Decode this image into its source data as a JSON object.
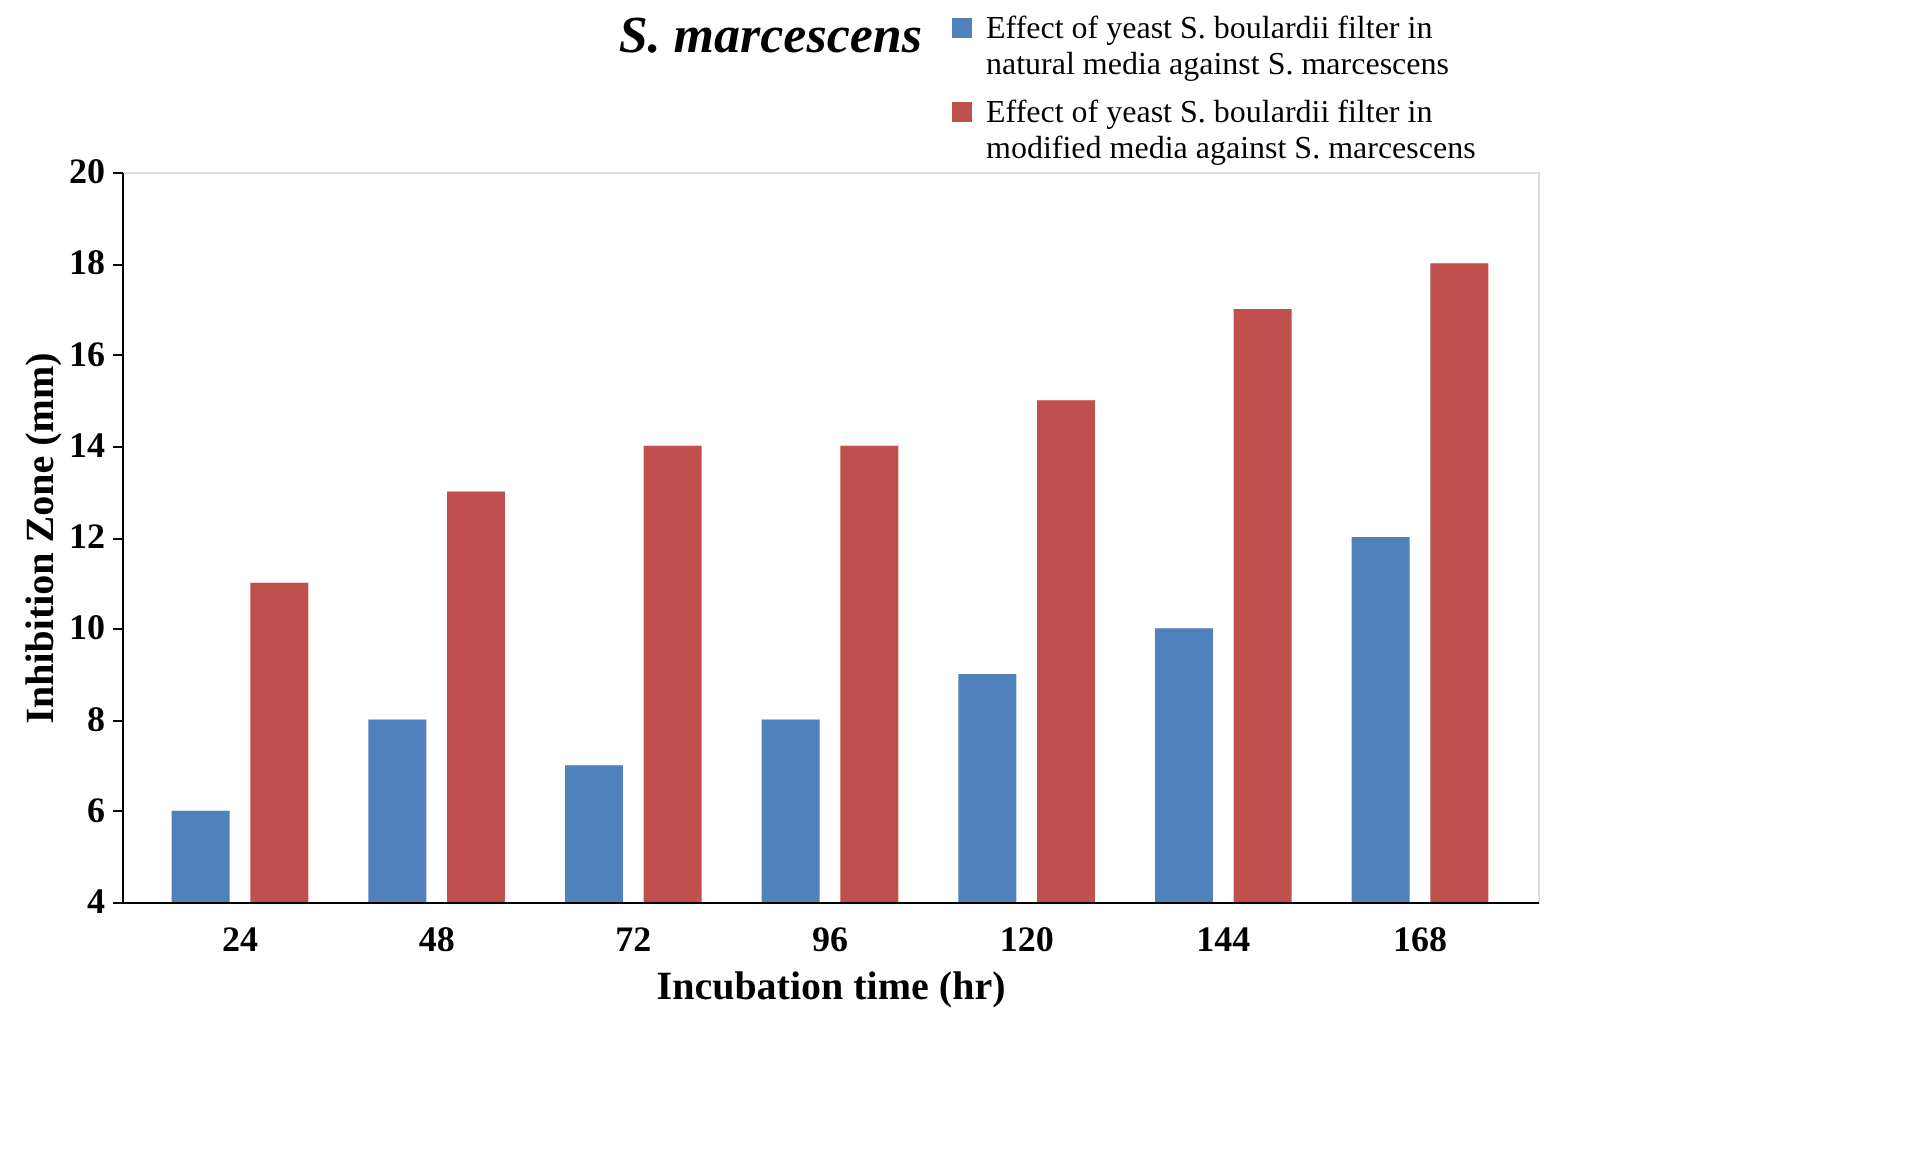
{
  "chart_data": {
    "type": "bar",
    "title": "S. marcescens",
    "xlabel": "Incubation time (hr)",
    "ylabel": "Inhibition Zone (mm)",
    "categories": [
      "24",
      "48",
      "72",
      "96",
      "120",
      "144",
      "168"
    ],
    "series": [
      {
        "name": "Effect of yeast S. boulardii filter in natural media against S. marcescens",
        "color": "#4f81bd",
        "values": [
          6,
          8,
          7,
          8,
          9,
          10,
          12
        ]
      },
      {
        "name": "Effect of yeast S. boulardii filter in modified media against S. marcescens",
        "color": "#c0504d",
        "values": [
          11,
          13,
          14,
          14,
          15,
          17,
          18
        ]
      }
    ],
    "ylim": [
      4,
      20
    ],
    "yticks": [
      4,
      6,
      8,
      10,
      12,
      14,
      16,
      18,
      20
    ],
    "grid": false,
    "legend": "top right"
  }
}
